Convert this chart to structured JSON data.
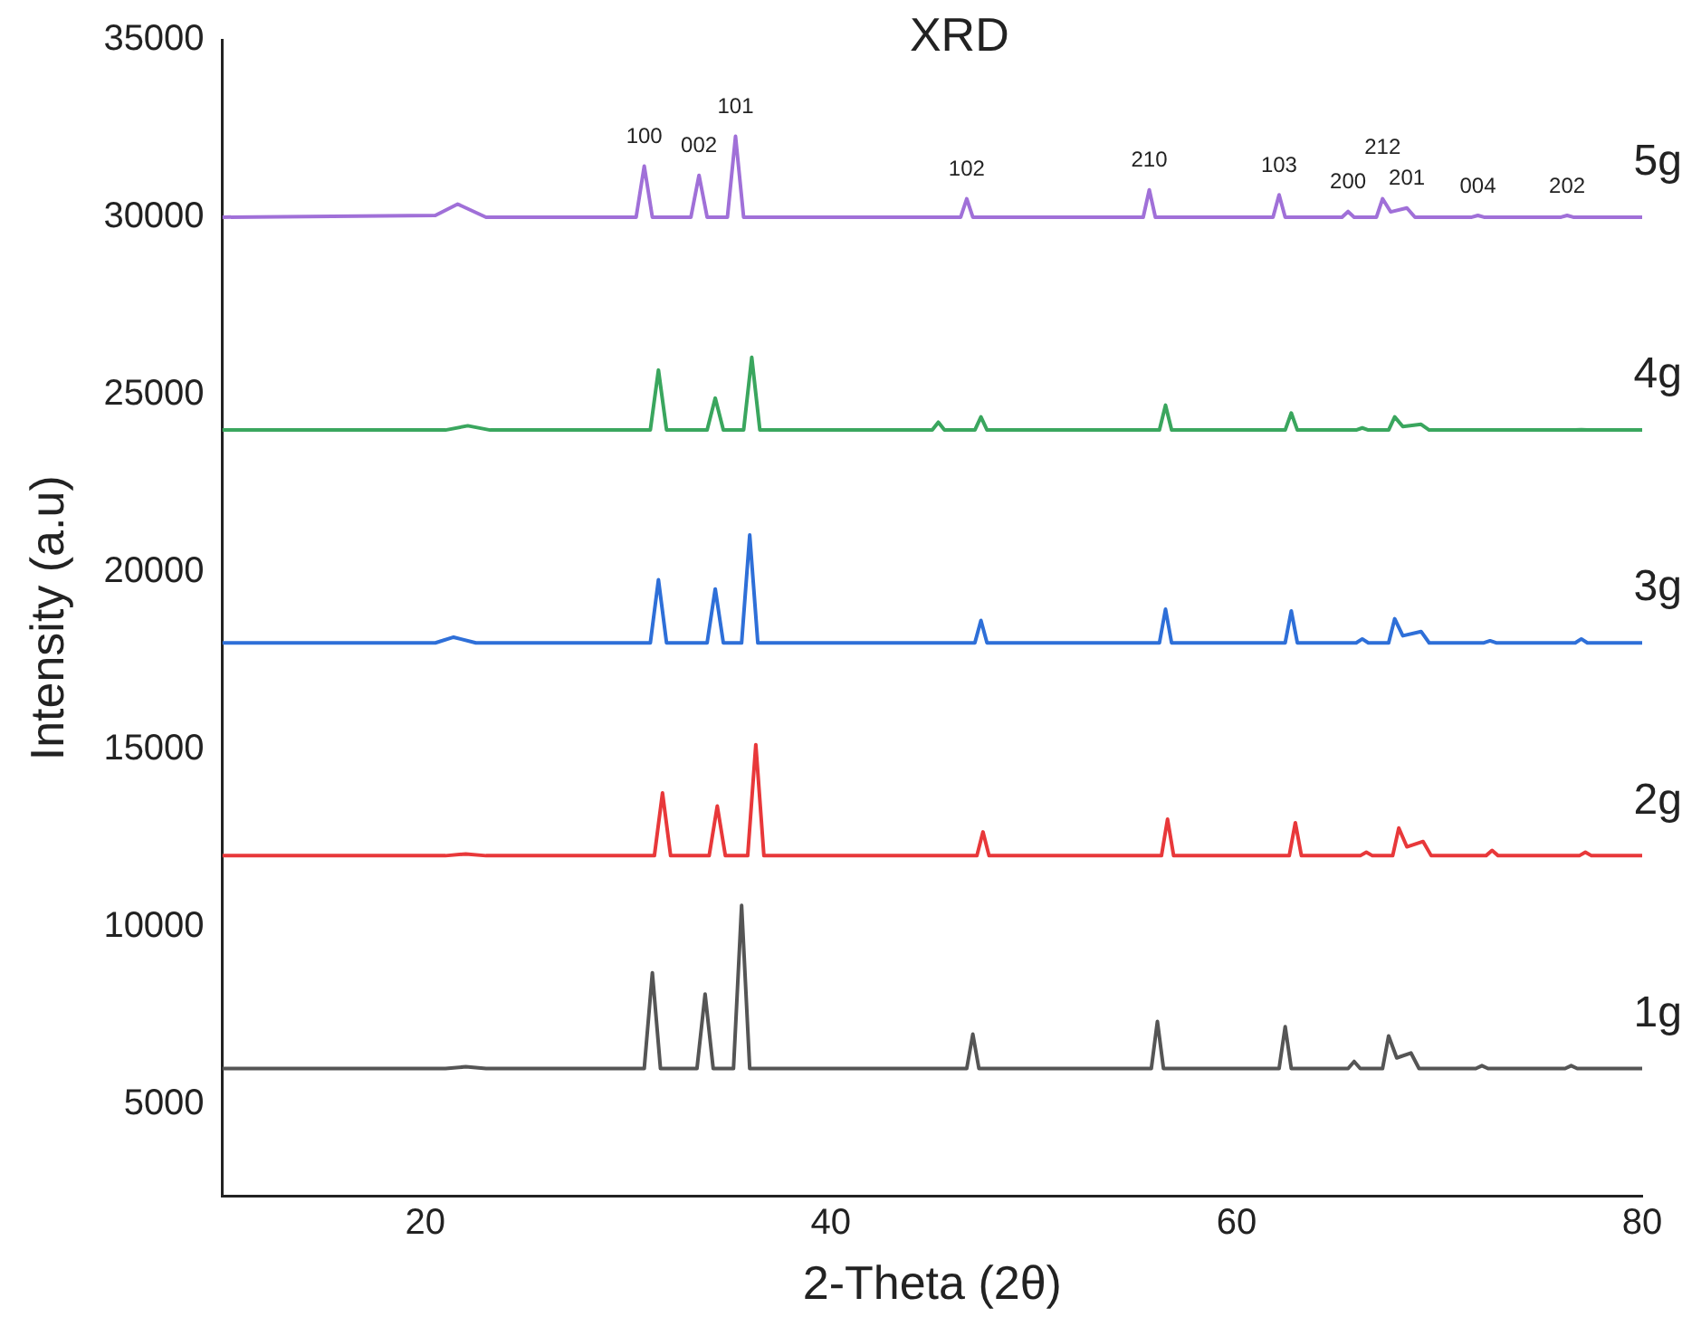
{
  "chart_data": {
    "type": "line",
    "title": "XRD",
    "xlabel": "2-Theta (2θ)",
    "ylabel": "Intensity (a.u)",
    "xlim": [
      10,
      80
    ],
    "xticks": [
      20,
      40,
      60,
      80
    ],
    "ylim": [
      2400,
      35000
    ],
    "yticks": [
      5000,
      10000,
      15000,
      20000,
      25000,
      30000,
      35000
    ],
    "grid": false,
    "legend": false,
    "marker": "none",
    "line_style": "solid",
    "series": [
      {
        "name": "1g",
        "color": "#555555",
        "x": [
          10,
          21,
          22,
          23,
          30.8,
          31.2,
          31.6,
          33.4,
          33.8,
          34.2,
          35.2,
          35.6,
          36.0,
          46.7,
          47.0,
          47.3,
          55.8,
          56.1,
          56.4,
          62.1,
          62.4,
          62.7,
          65.5,
          65.8,
          66.1,
          67.2,
          67.5,
          67.9,
          68.6,
          69.0,
          71.8,
          72.1,
          72.4,
          76.2,
          76.5,
          76.8,
          80
        ],
        "values": [
          6000,
          6000,
          6050,
          6000,
          6000,
          8700,
          6000,
          6000,
          8100,
          6000,
          6000,
          10600,
          6000,
          6000,
          6970,
          6000,
          6000,
          7330,
          6000,
          6000,
          7180,
          6000,
          6000,
          6200,
          6000,
          6000,
          6920,
          6300,
          6440,
          6000,
          6000,
          6080,
          6000,
          6000,
          6080,
          6000,
          6000
        ]
      },
      {
        "name": "2g",
        "color": "#e8383a",
        "x": [
          10,
          21,
          22,
          23,
          31.3,
          31.7,
          32.1,
          34.0,
          34.4,
          34.8,
          35.9,
          36.3,
          36.7,
          47.2,
          47.5,
          47.8,
          56.3,
          56.6,
          56.9,
          62.6,
          62.9,
          63.2,
          66.1,
          66.4,
          66.7,
          67.7,
          68.0,
          68.4,
          69.2,
          69.6,
          72.3,
          72.6,
          72.9,
          76.9,
          77.2,
          77.5,
          80
        ],
        "values": [
          12000,
          12000,
          12050,
          12000,
          12000,
          13770,
          12000,
          12000,
          13400,
          12000,
          12000,
          15130,
          12000,
          12000,
          12670,
          12000,
          12000,
          13030,
          12000,
          12000,
          12930,
          12000,
          12000,
          12100,
          12000,
          12000,
          12780,
          12250,
          12400,
          12000,
          12000,
          12150,
          12000,
          12000,
          12100,
          12000,
          12000
        ]
      },
      {
        "name": "3g",
        "color": "#2e6fd8",
        "x": [
          10,
          20.5,
          21.4,
          22.5,
          31.1,
          31.5,
          31.9,
          33.9,
          34.3,
          34.7,
          35.6,
          36.0,
          36.4,
          47.1,
          47.4,
          47.7,
          56.2,
          56.5,
          56.8,
          62.4,
          62.7,
          63.0,
          65.9,
          66.2,
          66.5,
          67.5,
          67.8,
          68.2,
          69.1,
          69.5,
          72.2,
          72.5,
          72.8,
          76.7,
          77.0,
          77.3,
          80
        ],
        "values": [
          18000,
          18000,
          18160,
          18000,
          18000,
          19780,
          18000,
          18000,
          19520,
          18000,
          18000,
          21040,
          18000,
          18000,
          18630,
          18000,
          18000,
          18950,
          18000,
          18000,
          18900,
          18000,
          18000,
          18110,
          18000,
          18000,
          18680,
          18200,
          18320,
          18000,
          18000,
          18060,
          18000,
          18000,
          18110,
          18000,
          18000
        ]
      },
      {
        "name": "4g",
        "color": "#3aa65e",
        "x": [
          10,
          21,
          22.1,
          23.2,
          31.1,
          31.5,
          31.9,
          33.9,
          34.3,
          34.7,
          35.7,
          36.1,
          36.5,
          45.0,
          45.3,
          45.6,
          47.1,
          47.4,
          47.7,
          56.2,
          56.5,
          56.8,
          62.4,
          62.7,
          63.0,
          65.9,
          66.2,
          66.5,
          67.5,
          67.8,
          68.2,
          69.1,
          69.5,
          76.7,
          77.0,
          77.3,
          80
        ],
        "values": [
          24000,
          24000,
          24120,
          24000,
          24000,
          25690,
          24000,
          24000,
          24900,
          24000,
          24000,
          26050,
          24000,
          24000,
          24220,
          24000,
          24000,
          24370,
          24000,
          24000,
          24700,
          24000,
          24000,
          24480,
          24000,
          24000,
          24060,
          24000,
          24000,
          24370,
          24100,
          24160,
          24000,
          24000,
          24010,
          24000,
          24000
        ]
      },
      {
        "name": "5g",
        "color": "#a070d8",
        "x": [
          10,
          20.5,
          21.6,
          23,
          30.4,
          30.8,
          31.2,
          33.1,
          33.5,
          33.9,
          34.9,
          35.3,
          35.7,
          46.4,
          46.7,
          47.0,
          55.4,
          55.7,
          56.0,
          61.8,
          62.1,
          62.4,
          65.2,
          65.5,
          65.8,
          66.9,
          67.2,
          67.6,
          68.4,
          68.8,
          71.6,
          71.9,
          72.2,
          76.0,
          76.3,
          76.6,
          80
        ],
        "values": [
          30000,
          30050,
          30370,
          30000,
          30000,
          31440,
          30000,
          30000,
          31180,
          30000,
          30000,
          32280,
          30000,
          30000,
          30520,
          30000,
          30000,
          30770,
          30000,
          30000,
          30630,
          30000,
          30000,
          30160,
          30000,
          30000,
          30520,
          30150,
          30260,
          30000,
          30000,
          30050,
          30000,
          30000,
          30050,
          30000,
          30000
        ]
      }
    ],
    "annotations": [
      {
        "text": "100",
        "x": 30.8,
        "y": 31440
      },
      {
        "text": "002",
        "x": 33.5,
        "y": 31180
      },
      {
        "text": "101",
        "x": 35.3,
        "y": 32280
      },
      {
        "text": "102",
        "x": 46.7,
        "y": 30520
      },
      {
        "text": "210",
        "x": 55.7,
        "y": 30770
      },
      {
        "text": "103",
        "x": 62.1,
        "y": 30630
      },
      {
        "text": "200",
        "x": 65.5,
        "y": 30160
      },
      {
        "text": "212",
        "x": 67.2,
        "y": 30520
      },
      {
        "text": "201",
        "x": 68.4,
        "y": 30260
      },
      {
        "text": "004",
        "x": 71.9,
        "y": 30050
      },
      {
        "text": "202",
        "x": 76.3,
        "y": 30050
      }
    ]
  }
}
